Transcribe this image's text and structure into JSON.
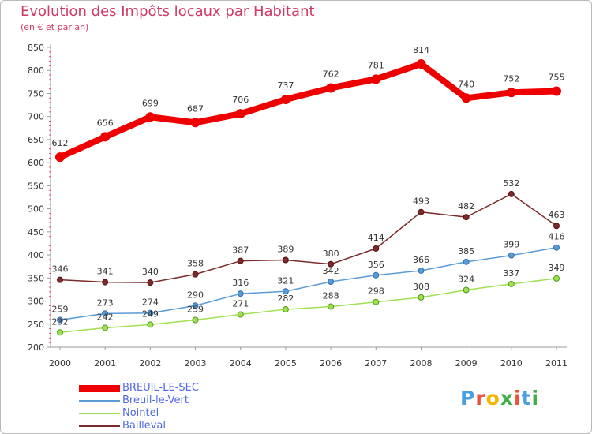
{
  "title": "Evolution des Impôts locaux par Habitant",
  "subtitle": "(en € et par an)",
  "logo": {
    "letters": [
      "P",
      "r",
      "o",
      "x",
      "i",
      "t",
      "i"
    ],
    "colors": [
      "#4a9fe0",
      "#e8543b",
      "#f4b400",
      "#3fae49",
      "#e8543b",
      "#4a9fe0",
      "#3fae49"
    ]
  },
  "chart_data": {
    "type": "line",
    "categories": [
      "2000",
      "2001",
      "2002",
      "2003",
      "2004",
      "2005",
      "2006",
      "2007",
      "2008",
      "2009",
      "2010",
      "2011"
    ],
    "ylim": [
      200,
      850
    ],
    "yticks": [
      "200",
      "250",
      "300",
      "350",
      "400",
      "450",
      "500",
      "550",
      "600",
      "650",
      "700",
      "750",
      "800",
      "850"
    ],
    "grid": false,
    "legend_position": "bottom-left",
    "series": [
      {
        "name": "BREUIL-LE-SEC",
        "color": "#ee0000",
        "values": [
          612,
          656,
          699,
          687,
          706,
          737,
          762,
          781,
          814,
          740,
          752,
          755
        ]
      },
      {
        "name": "Breuil-le-Vert",
        "color": "#5b9bd5",
        "values": [
          259,
          273,
          274,
          290,
          316,
          321,
          342,
          356,
          366,
          385,
          399,
          416
        ]
      },
      {
        "name": "Nointel",
        "color": "#9ee04f",
        "values": [
          232,
          242,
          249,
          259,
          271,
          282,
          288,
          298,
          308,
          324,
          337,
          349
        ]
      },
      {
        "name": "Bailleval",
        "color": "#7a2b2b",
        "values": [
          346,
          341,
          340,
          358,
          387,
          389,
          380,
          414,
          493,
          482,
          532,
          463
        ]
      }
    ]
  }
}
